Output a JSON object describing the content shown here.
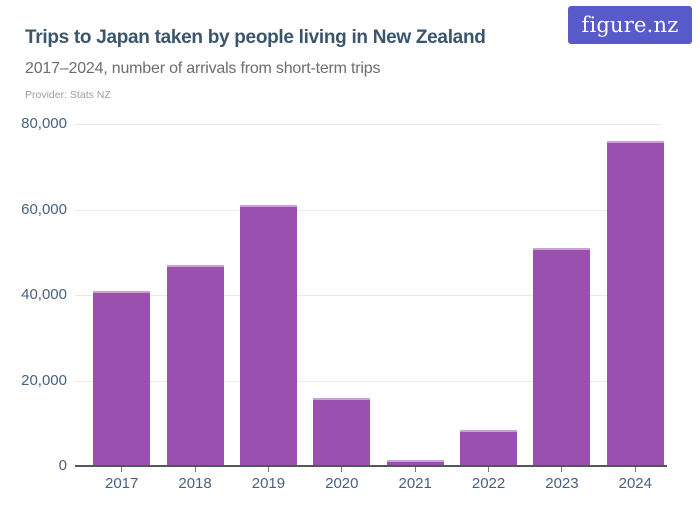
{
  "header": {
    "title": "Trips to Japan taken by people living in New Zealand",
    "subtitle": "2017–2024, number of arrivals from short-term trips",
    "provider": "Provider: Stats NZ",
    "logo_text": "figure.nz"
  },
  "colors": {
    "bar": "#9a50ae",
    "bar_top_edge": "#c9a1d6",
    "logo_background": "#575ac8",
    "title_text": "#3b556d",
    "subtitle_text": "#6d6d72",
    "provider_text": "#9d9da1",
    "axis_label_text": "#48617f",
    "gridline": "#e9e9ea",
    "axis_line": "#55565a"
  },
  "chart_data": {
    "type": "bar",
    "title": "Trips to Japan taken by people living in New Zealand",
    "subtitle": "2017–2024, number of arrivals from short-term trips",
    "categories": [
      "2017",
      "2018",
      "2019",
      "2020",
      "2021",
      "2022",
      "2023",
      "2024"
    ],
    "values": [
      41000,
      47000,
      61000,
      16000,
      1300,
      8500,
      51000,
      76000
    ],
    "xlabel": "",
    "ylabel": "",
    "ylim": [
      0,
      80000
    ],
    "ytick_values": [
      80000,
      60000,
      40000,
      20000,
      0
    ],
    "ytick_labels": [
      "80,000",
      "60,000",
      "40,000",
      "20,000",
      "0"
    ],
    "grid": true,
    "legend": false
  }
}
